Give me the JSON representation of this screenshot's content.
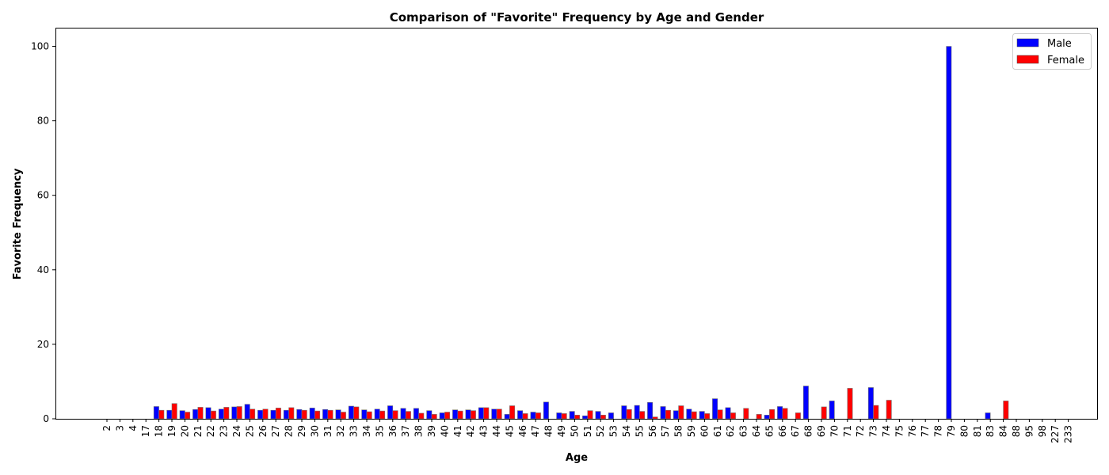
{
  "chart_data": {
    "type": "bar",
    "title": "Comparison of \"Favorite\" Frequency by Age and Gender",
    "xlabel": "Age",
    "ylabel": "Favorite Frequency",
    "ylim": [
      0,
      105
    ],
    "yticks": [
      0,
      20,
      40,
      60,
      80,
      100
    ],
    "grid": false,
    "legend_position": "top-right",
    "categories": [
      "2",
      "3",
      "4",
      "17",
      "18",
      "19",
      "20",
      "21",
      "22",
      "23",
      "24",
      "25",
      "26",
      "27",
      "28",
      "29",
      "30",
      "31",
      "32",
      "33",
      "34",
      "35",
      "36",
      "37",
      "38",
      "39",
      "40",
      "41",
      "42",
      "43",
      "44",
      "45",
      "46",
      "47",
      "48",
      "49",
      "50",
      "51",
      "52",
      "53",
      "54",
      "55",
      "56",
      "57",
      "58",
      "59",
      "60",
      "61",
      "62",
      "63",
      "64",
      "65",
      "66",
      "67",
      "68",
      "69",
      "70",
      "71",
      "72",
      "73",
      "74",
      "75",
      "76",
      "77",
      "78",
      "79",
      "80",
      "81",
      "83",
      "84",
      "88",
      "95",
      "98",
      "227",
      "233"
    ],
    "series": [
      {
        "name": "Male",
        "color": "#0000ff",
        "values": [
          0,
          0,
          0,
          0,
          3.3,
          2.3,
          2.2,
          2.5,
          3.0,
          2.6,
          3.2,
          3.9,
          2.3,
          2.3,
          2.3,
          2.5,
          2.9,
          2.5,
          2.4,
          3.4,
          2.4,
          2.6,
          3.5,
          2.8,
          2.8,
          2.2,
          1.6,
          2.4,
          2.4,
          3.0,
          2.6,
          1.2,
          2.2,
          1.8,
          4.5,
          1.6,
          2.0,
          0.8,
          2.0,
          1.6,
          3.5,
          3.6,
          4.4,
          3.3,
          2.2,
          2.6,
          2.0,
          5.4,
          3.0,
          0,
          0,
          1.0,
          3.3,
          0,
          8.8,
          0,
          4.8,
          0,
          0,
          8.4,
          0,
          0,
          0,
          0,
          0,
          100,
          0,
          0,
          1.6,
          0,
          0,
          0,
          0,
          0,
          0
        ]
      },
      {
        "name": "Female",
        "color": "#ff0000",
        "values": [
          0,
          0,
          0,
          0,
          2.3,
          4.1,
          1.8,
          3.1,
          2.1,
          3.1,
          3.3,
          2.6,
          2.6,
          2.9,
          3.0,
          2.3,
          2.1,
          2.3,
          1.8,
          3.2,
          1.9,
          2.1,
          2.2,
          2.0,
          1.5,
          1.2,
          1.8,
          2.1,
          2.2,
          3.0,
          2.6,
          3.5,
          1.4,
          1.6,
          0,
          1.4,
          1.0,
          2.2,
          1.0,
          0,
          2.5,
          2.0,
          0.5,
          2.3,
          3.5,
          1.9,
          1.4,
          2.4,
          1.6,
          2.8,
          1.2,
          2.5,
          2.8,
          1.6,
          0,
          3.2,
          0,
          8.2,
          0,
          3.6,
          5.0,
          0,
          0,
          0,
          0,
          0,
          0,
          0,
          0,
          4.8,
          0,
          0,
          0,
          0,
          0
        ]
      }
    ]
  }
}
